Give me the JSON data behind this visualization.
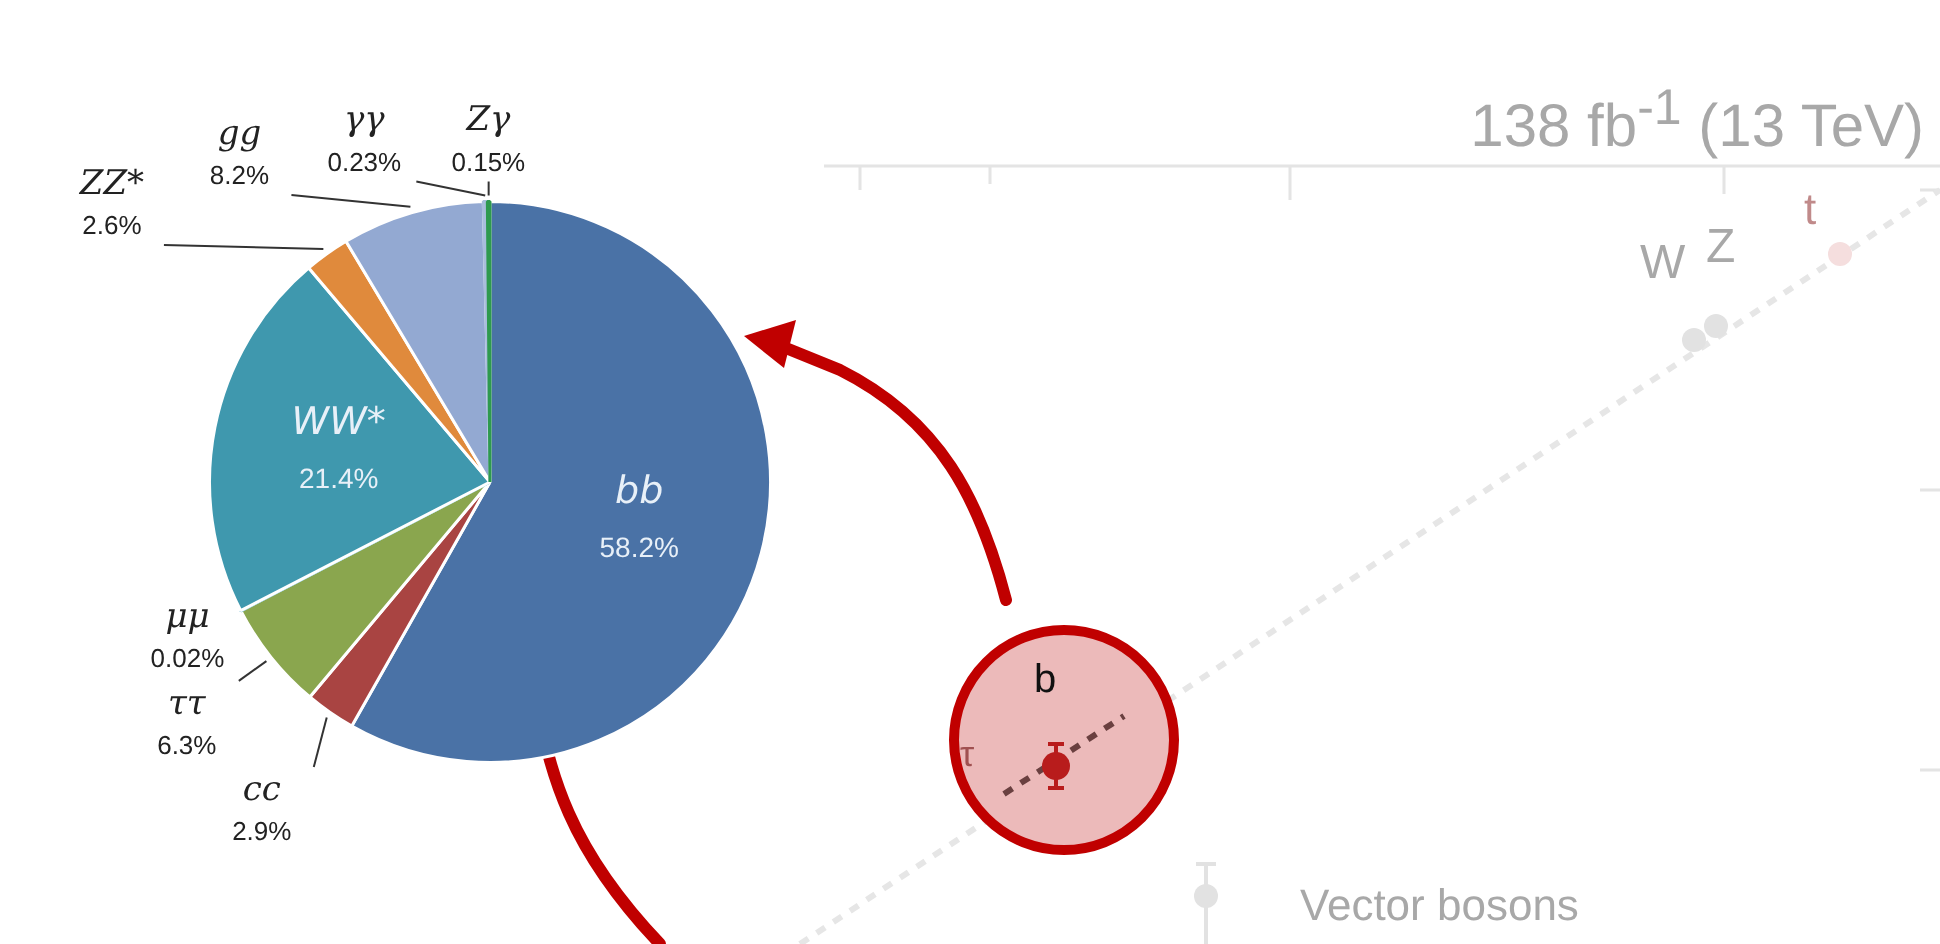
{
  "chart_data": [
    {
      "type": "pie",
      "categories": [
        "bb",
        "cc",
        "ττ",
        "μμ",
        "WW*",
        "ZZ*",
        "gg",
        "γγ",
        "Zγ"
      ],
      "values": [
        58.2,
        2.9,
        6.3,
        0.02,
        21.4,
        2.6,
        8.2,
        0.23,
        0.15
      ],
      "value_labels": [
        "58.2%",
        "2.9%",
        "6.3%",
        "0.02%",
        "21.4%",
        "2.6%",
        "8.2%",
        "0.23%",
        "0.15%"
      ],
      "colors": [
        "#4a72a6",
        "#a94442",
        "#8aa64e",
        "#4bacc6",
        "#3f98ae",
        "#e08a3c",
        "#93a9d2",
        "#a9bedc",
        "#2e9a4e"
      ],
      "legend": false
    },
    {
      "type": "other",
      "title": "138 fb$^{-1}$ (13 TeV)",
      "annotations": [
        "W",
        "Z",
        "t",
        "b",
        "τ",
        "Vector bosons"
      ]
    }
  ]
}
